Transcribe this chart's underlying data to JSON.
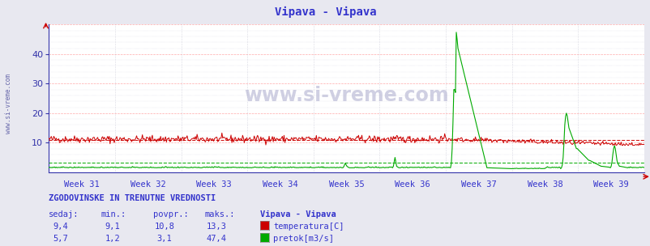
{
  "title": "Vipava - Vipava",
  "title_color": "#3333cc",
  "bg_color": "#e8e8f0",
  "plot_bg_color": "#ffffff",
  "grid_color_major": "#ffaaaa",
  "grid_color_minor": "#ddddee",
  "watermark": "www.si-vreme.com",
  "ylim": [
    0,
    50
  ],
  "yticks": [
    10,
    20,
    30,
    40
  ],
  "week_labels": [
    "Week 31",
    "Week 32",
    "Week 33",
    "Week 34",
    "Week 35",
    "Week 36",
    "Week 37",
    "Week 38",
    "Week 39"
  ],
  "n_points": 720,
  "temp_color": "#cc0000",
  "flow_color": "#00aa00",
  "temp_avg": 10.8,
  "temp_min": 9.1,
  "temp_max": 13.3,
  "temp_current": 9.4,
  "flow_avg": 3.1,
  "flow_min": 1.2,
  "flow_max": 47.4,
  "flow_current": 5.7,
  "axis_color": "#3333aa",
  "tick_color": "#3333aa",
  "label_color": "#3333cc",
  "stats_title_color": "#3333cc"
}
